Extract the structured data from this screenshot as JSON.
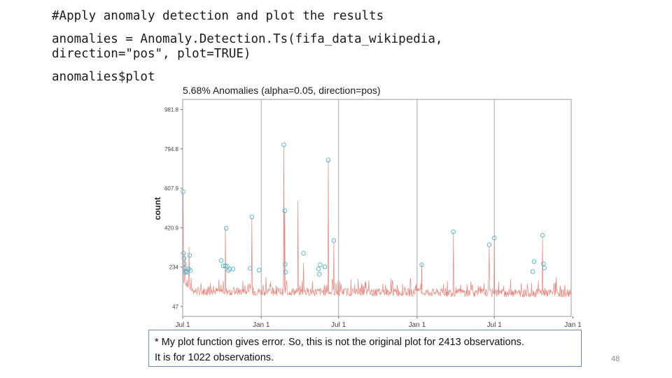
{
  "slide": {
    "code_lines": [
      "#Apply anomaly detection and plot the results",
      "anomalies = Anomaly.Detection.Ts(fifa_data_wikipedia,",
      "direction=\"pos\", plot=TRUE)",
      "anomalies$plot"
    ],
    "note_lines": [
      "* My plot function gives error. So, this is not the original plot for 2413 observations.",
      "It is for 1022 observations."
    ],
    "page_number": "48"
  },
  "colors": {
    "line": "#e8847a",
    "anomaly": "#4ab4cf",
    "grid": "#a9a9a9",
    "panel_border": "#9a9a9a",
    "note_border": "#6a8fb6"
  },
  "chart_data": {
    "type": "line",
    "title": "5.68% Anomalies (alpha=0.05, direction=pos)",
    "xlabel": "",
    "ylabel": "count",
    "y_ticks": [
      "47",
      "234",
      "420.9",
      "607.9",
      "794.8",
      "981.8"
    ],
    "ylim": [
      0,
      1030
    ],
    "x_ticks": [
      "Jul 1",
      "Jan 1",
      "Jul 1",
      "Jan 1",
      "Jul 1",
      "Jan 1"
    ],
    "grid": "vertical lines at x tick dates",
    "n_observations": 1022,
    "baseline": 120,
    "spikes": [
      {
        "day": 1,
        "value": 585
      },
      {
        "day": 5,
        "value": 300
      },
      {
        "day": 15,
        "value": 330
      },
      {
        "day": 100,
        "value": 420
      },
      {
        "day": 162,
        "value": 470
      },
      {
        "day": 237,
        "value": 810
      },
      {
        "day": 239,
        "value": 500
      },
      {
        "day": 270,
        "value": 550
      },
      {
        "day": 283,
        "value": 255
      },
      {
        "day": 341,
        "value": 740
      },
      {
        "day": 354,
        "value": 350
      },
      {
        "day": 560,
        "value": 250
      },
      {
        "day": 634,
        "value": 400
      },
      {
        "day": 718,
        "value": 330
      },
      {
        "day": 730,
        "value": 370
      },
      {
        "day": 843,
        "value": 380
      }
    ],
    "anomalies": [
      {
        "day": 1,
        "value": 592
      },
      {
        "day": 2,
        "value": 300
      },
      {
        "day": 3,
        "value": 275
      },
      {
        "day": 4,
        "value": 250
      },
      {
        "day": 5,
        "value": 230
      },
      {
        "day": 6,
        "value": 210
      },
      {
        "day": 8,
        "value": 215
      },
      {
        "day": 11,
        "value": 210
      },
      {
        "day": 14,
        "value": 225
      },
      {
        "day": 16,
        "value": 290
      },
      {
        "day": 18,
        "value": 218
      },
      {
        "day": 90,
        "value": 265
      },
      {
        "day": 95,
        "value": 240
      },
      {
        "day": 100,
        "value": 240
      },
      {
        "day": 102,
        "value": 418
      },
      {
        "day": 104,
        "value": 238
      },
      {
        "day": 107,
        "value": 218
      },
      {
        "day": 110,
        "value": 225
      },
      {
        "day": 118,
        "value": 225
      },
      {
        "day": 158,
        "value": 228
      },
      {
        "day": 162,
        "value": 472
      },
      {
        "day": 179,
        "value": 220
      },
      {
        "day": 237,
        "value": 815
      },
      {
        "day": 239,
        "value": 502
      },
      {
        "day": 240,
        "value": 247
      },
      {
        "day": 241,
        "value": 210
      },
      {
        "day": 283,
        "value": 300
      },
      {
        "day": 318,
        "value": 225
      },
      {
        "day": 320,
        "value": 200
      },
      {
        "day": 322,
        "value": 245
      },
      {
        "day": 333,
        "value": 235
      },
      {
        "day": 341,
        "value": 742
      },
      {
        "day": 354,
        "value": 360
      },
      {
        "day": 560,
        "value": 245
      },
      {
        "day": 634,
        "value": 402
      },
      {
        "day": 718,
        "value": 340
      },
      {
        "day": 730,
        "value": 372
      },
      {
        "day": 820,
        "value": 213
      },
      {
        "day": 823,
        "value": 260
      },
      {
        "day": 843,
        "value": 385
      },
      {
        "day": 845,
        "value": 250
      },
      {
        "day": 847,
        "value": 230
      }
    ]
  }
}
